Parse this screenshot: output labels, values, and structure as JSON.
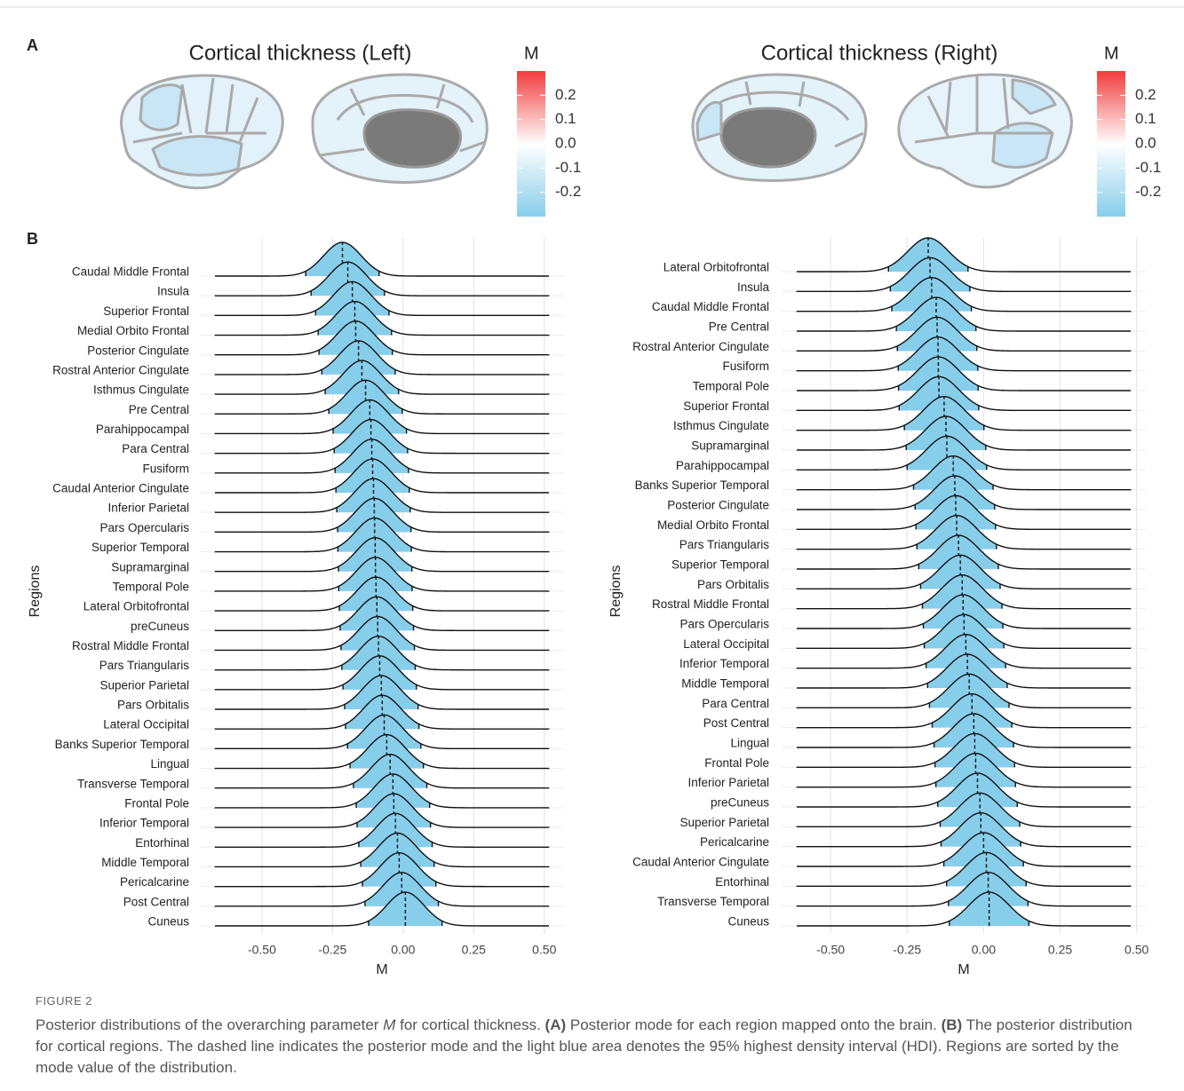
{
  "figure": {
    "panel_a": "A",
    "panel_b": "B",
    "label": "FIGURE 2",
    "caption": [
      {
        "text": "Posterior distributions of the overarching parameter ",
        "style": "normal"
      },
      {
        "text": "M",
        "style": "italic"
      },
      {
        "text": " for cortical thickness. ",
        "style": "normal"
      },
      {
        "text": "(A)",
        "style": "bold"
      },
      {
        "text": " Posterior mode for each region mapped onto the brain. ",
        "style": "normal"
      },
      {
        "text": "(B)",
        "style": "bold"
      },
      {
        "text": " The posterior distribution for cortical regions. The dashed line indicates the posterior mode and the light blue area denotes the 95% highest density interval (HDI). Regions are sorted by the mode value of the distribution.",
        "style": "normal"
      }
    ]
  },
  "brain_maps": [
    {
      "title": "Cortical thickness (Left)",
      "colorbar": {
        "title": "M",
        "lim": [
          -0.3,
          0.3
        ],
        "colors": [
          "#87ceeb",
          "#ffffff",
          "#f23c3c"
        ],
        "ticks": [
          0.2,
          0.1,
          {
            "value": 0,
            "label": "0.0"
          },
          -0.1,
          -0.2
        ]
      }
    },
    {
      "title": "Cortical thickness (Right)",
      "colorbar": {
        "title": "M",
        "lim": [
          -0.3,
          0.3
        ],
        "colors": [
          "#87ceeb",
          "#ffffff",
          "#f23c3c"
        ],
        "ticks": [
          0.2,
          0.1,
          {
            "value": 0,
            "label": "0.0"
          },
          -0.1,
          -0.2
        ]
      }
    }
  ],
  "chart_data": [
    {
      "type": "ridgeline",
      "ylabel": "Regions",
      "xlabel": "M",
      "xlim": [
        -0.72,
        0.57
      ],
      "xticks": [
        {
          "value": -0.5,
          "label": "-0.50"
        },
        {
          "value": -0.25,
          "label": "-0.25"
        },
        {
          "value": 0,
          "label": "0.00"
        },
        {
          "value": 0.25,
          "label": "0.25"
        },
        {
          "value": 0.5,
          "label": "0.50"
        }
      ],
      "grid": true,
      "hdi_color": "#87ceeb",
      "hdi_halfwidth": 0.13,
      "categories": [
        "Caudal Middle Frontal",
        "Insula",
        "Superior Frontal",
        "Medial Orbito Frontal",
        "Posterior Cingulate",
        "Rostral Anterior Cingulate",
        "Isthmus Cingulate",
        "Pre Central",
        "Parahippocampal",
        "Para Central",
        "Fusiform",
        "Caudal Anterior Cingulate",
        "Inferior Parietal",
        "Pars Opercularis",
        "Superior Temporal",
        "Supramarginal",
        "Temporal Pole",
        "Lateral Orbitofrontal",
        "preCuneus",
        "Rostral Middle Frontal",
        "Pars Triangularis",
        "Superior Parietal",
        "Pars Orbitalis",
        "Lateral Occipital",
        "Banks Superior Temporal",
        "Lingual",
        "Transverse Temporal",
        "Frontal Pole",
        "Inferior Temporal",
        "Entorhinal",
        "Middle Temporal",
        "Pericalcarine",
        "Post Central",
        "Cuneus"
      ],
      "modes": [
        -0.215,
        -0.196,
        -0.18,
        -0.171,
        -0.168,
        -0.158,
        -0.146,
        -0.133,
        -0.118,
        -0.114,
        -0.111,
        -0.108,
        -0.105,
        -0.102,
        -0.101,
        -0.099,
        -0.098,
        -0.096,
        -0.093,
        -0.09,
        -0.087,
        -0.083,
        -0.077,
        -0.074,
        -0.067,
        -0.058,
        -0.046,
        -0.036,
        -0.033,
        -0.027,
        -0.02,
        -0.014,
        -0.005,
        0.008
      ]
    },
    {
      "type": "ridgeline",
      "ylabel": "Regions",
      "xlabel": "M",
      "xlim": [
        -0.66,
        0.53
      ],
      "xticks": [
        {
          "value": -0.5,
          "label": "-0.50"
        },
        {
          "value": -0.25,
          "label": "-0.25"
        },
        {
          "value": 0,
          "label": "0.00"
        },
        {
          "value": 0.25,
          "label": "0.25"
        },
        {
          "value": 0.5,
          "label": "0.50"
        }
      ],
      "grid": true,
      "hdi_color": "#87ceeb",
      "hdi_halfwidth": 0.13,
      "categories": [
        "Lateral Orbitofrontal",
        "Insula",
        "Caudal Middle Frontal",
        "Pre Central",
        "Rostral Anterior Cingulate",
        "Fusiform",
        "Temporal Pole",
        "Superior Frontal",
        "Isthmus Cingulate",
        "Supramarginal",
        "Parahippocampal",
        "Banks Superior Temporal",
        "Posterior Cingulate",
        "Medial Orbito Frontal",
        "Pars Triangularis",
        "Superior Temporal",
        "Pars Orbitalis",
        "Rostral Middle Frontal",
        "Pars Opercularis",
        "Lateral Occipital",
        "Inferior Temporal",
        "Middle Temporal",
        "Para Central",
        "Post Central",
        "Lingual",
        "Frontal Pole",
        "Inferior Parietal",
        "preCuneus",
        "Superior Parietal",
        "Pericalcarine",
        "Caudal Anterior Cingulate",
        "Entorhinal",
        "Transverse Temporal",
        "Cuneus"
      ],
      "modes": [
        -0.181,
        -0.175,
        -0.17,
        -0.155,
        -0.152,
        -0.149,
        -0.148,
        -0.146,
        -0.129,
        -0.123,
        -0.12,
        -0.099,
        -0.094,
        -0.091,
        -0.088,
        -0.082,
        -0.076,
        -0.07,
        -0.067,
        -0.064,
        -0.058,
        -0.053,
        -0.047,
        -0.038,
        -0.032,
        -0.029,
        -0.026,
        -0.02,
        -0.012,
        -0.009,
        0.0,
        0.009,
        0.015,
        0.018
      ]
    }
  ]
}
